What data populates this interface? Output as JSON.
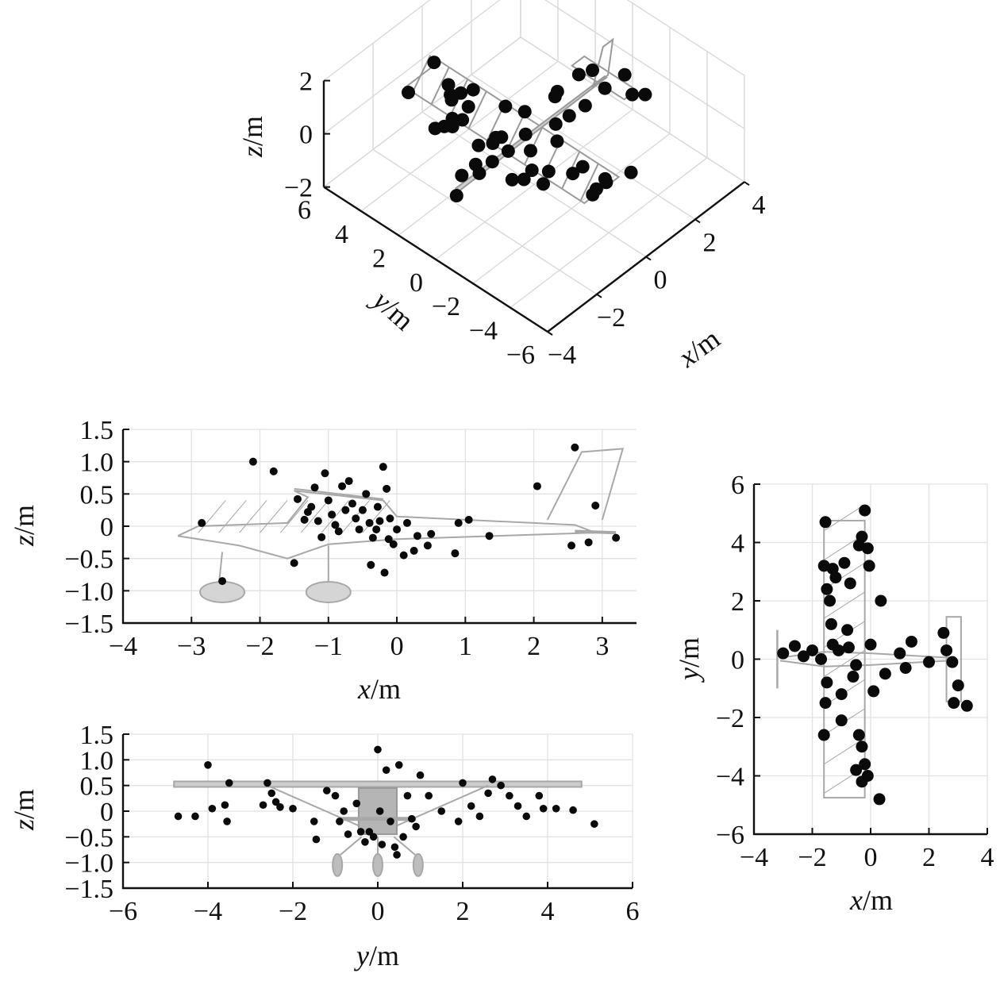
{
  "figure": {
    "panels": [
      {
        "id": "iso",
        "xlabel": "x",
        "ylabel": "y",
        "zlabel": "z",
        "unit": "/m"
      },
      {
        "id": "xz",
        "xlabel": "x",
        "ylabel": "z",
        "unit": "/m"
      },
      {
        "id": "yz",
        "xlabel": "y",
        "ylabel": "z",
        "unit": "/m"
      },
      {
        "id": "xy",
        "xlabel": "x",
        "ylabel": "y",
        "unit": "/m"
      }
    ]
  },
  "chart_data": [
    {
      "type": "scatter",
      "view": "3d",
      "xlabel": "x/m",
      "ylabel": "y/m",
      "zlabel": "z/m",
      "xlim": [
        -4,
        4
      ],
      "ylim": [
        -6,
        6
      ],
      "zlim": [
        -2,
        2
      ],
      "xticks": [
        "−4",
        "−2",
        "0",
        "2",
        "4"
      ],
      "yticks": [
        "−6",
        "−4",
        "−2",
        "0",
        "2",
        "4",
        "6"
      ],
      "zticks": [
        "−2",
        "0",
        "2"
      ],
      "grid": true
    },
    {
      "type": "scatter",
      "view": "side (x–z)",
      "xlabel": "x/m",
      "ylabel": "z/m",
      "xlim": [
        -4,
        3.5
      ],
      "ylim": [
        -1.5,
        1.5
      ],
      "xticks": [
        "−4",
        "−3",
        "−2",
        "−1",
        "0",
        "1",
        "2",
        "3"
      ],
      "yticks": [
        "1.5",
        "1.0",
        "0.5",
        "0",
        "−0.5",
        "−1.0",
        "−1.5"
      ],
      "grid": true,
      "points": [
        [
          -2.85,
          0.05
        ],
        [
          -2.55,
          -0.85
        ],
        [
          -2.1,
          1.0
        ],
        [
          -1.8,
          0.85
        ],
        [
          -1.5,
          -0.57
        ],
        [
          -1.45,
          0.42
        ],
        [
          -1.35,
          0.1
        ],
        [
          -1.3,
          0.22
        ],
        [
          -1.25,
          0.3
        ],
        [
          -1.2,
          0.6
        ],
        [
          -1.15,
          0.08
        ],
        [
          -1.1,
          -0.17
        ],
        [
          -1.05,
          0.82
        ],
        [
          -1.0,
          0.4
        ],
        [
          -0.95,
          0.18
        ],
        [
          -0.9,
          0.02
        ],
        [
          -0.85,
          -0.08
        ],
        [
          -0.8,
          0.62
        ],
        [
          -0.75,
          0.25
        ],
        [
          -0.7,
          0.7
        ],
        [
          -0.65,
          0.35
        ],
        [
          -0.6,
          0.12
        ],
        [
          -0.55,
          -0.05
        ],
        [
          -0.5,
          0.25
        ],
        [
          -0.45,
          0.5
        ],
        [
          -0.4,
          0.05
        ],
        [
          -0.38,
          -0.6
        ],
        [
          -0.35,
          -0.18
        ],
        [
          -0.3,
          -0.05
        ],
        [
          -0.28,
          0.3
        ],
        [
          -0.25,
          0.08
        ],
        [
          -0.2,
          0.92
        ],
        [
          -0.18,
          -0.72
        ],
        [
          -0.15,
          0.58
        ],
        [
          -0.12,
          -0.2
        ],
        [
          -0.1,
          0.12
        ],
        [
          -0.05,
          -0.28
        ],
        [
          0.0,
          -0.05
        ],
        [
          0.1,
          -0.45
        ],
        [
          0.15,
          0.05
        ],
        [
          0.25,
          -0.38
        ],
        [
          0.3,
          -0.15
        ],
        [
          0.45,
          -0.3
        ],
        [
          0.5,
          -0.12
        ],
        [
          0.85,
          -0.42
        ],
        [
          0.9,
          0.05
        ],
        [
          1.05,
          0.1
        ],
        [
          1.35,
          -0.15
        ],
        [
          2.05,
          0.62
        ],
        [
          2.55,
          -0.3
        ],
        [
          2.6,
          1.22
        ],
        [
          2.8,
          -0.25
        ],
        [
          2.9,
          0.32
        ],
        [
          3.2,
          -0.18
        ]
      ]
    },
    {
      "type": "scatter",
      "view": "front (y–z)",
      "xlabel": "y/m",
      "ylabel": "z/m",
      "xlim": [
        -6,
        6
      ],
      "ylim": [
        -1.5,
        1.5
      ],
      "xticks": [
        "−6",
        "−4",
        "−2",
        "0",
        "2",
        "4",
        "6"
      ],
      "yticks": [
        "1.5",
        "1.0",
        "0.5",
        "0",
        "−0.5",
        "−1.0",
        "−1.5"
      ],
      "grid": true,
      "points": [
        [
          -4.7,
          -0.1
        ],
        [
          -4.3,
          -0.1
        ],
        [
          -4.0,
          0.9
        ],
        [
          -3.9,
          0.05
        ],
        [
          -3.6,
          0.12
        ],
        [
          -3.55,
          -0.2
        ],
        [
          -3.5,
          0.55
        ],
        [
          -2.7,
          0.12
        ],
        [
          -2.6,
          0.55
        ],
        [
          -2.5,
          0.35
        ],
        [
          -2.4,
          0.18
        ],
        [
          -2.3,
          0.08
        ],
        [
          -2.0,
          0.05
        ],
        [
          -1.5,
          -0.2
        ],
        [
          -1.45,
          -0.55
        ],
        [
          -1.2,
          0.4
        ],
        [
          -1.0,
          0.3
        ],
        [
          -0.9,
          -0.2
        ],
        [
          -0.8,
          0.0
        ],
        [
          -0.7,
          -0.45
        ],
        [
          -0.5,
          0.15
        ],
        [
          -0.4,
          -0.4
        ],
        [
          -0.3,
          -0.6
        ],
        [
          -0.2,
          -0.4
        ],
        [
          -0.1,
          -0.5
        ],
        [
          0.0,
          1.2
        ],
        [
          0.05,
          0.0
        ],
        [
          0.1,
          -0.65
        ],
        [
          0.2,
          0.8
        ],
        [
          0.3,
          -0.2
        ],
        [
          0.4,
          -0.7
        ],
        [
          0.45,
          -0.85
        ],
        [
          0.5,
          0.9
        ],
        [
          0.6,
          -0.5
        ],
        [
          0.7,
          0.3
        ],
        [
          0.8,
          -0.15
        ],
        [
          0.9,
          -0.3
        ],
        [
          1.0,
          0.7
        ],
        [
          1.2,
          0.3
        ],
        [
          1.5,
          0.0
        ],
        [
          1.9,
          -0.2
        ],
        [
          2.0,
          0.55
        ],
        [
          2.2,
          0.1
        ],
        [
          2.4,
          -0.1
        ],
        [
          2.6,
          0.35
        ],
        [
          2.7,
          0.62
        ],
        [
          2.9,
          0.5
        ],
        [
          3.1,
          0.3
        ],
        [
          3.3,
          0.1
        ],
        [
          3.5,
          -0.1
        ],
        [
          3.8,
          0.3
        ],
        [
          3.9,
          0.05
        ],
        [
          4.2,
          0.05
        ],
        [
          4.6,
          0.02
        ],
        [
          5.1,
          -0.25
        ]
      ]
    },
    {
      "type": "scatter",
      "view": "top (x–y)",
      "xlabel": "x/m",
      "ylabel": "y/m",
      "xlim": [
        -4,
        4
      ],
      "ylim": [
        -6,
        6
      ],
      "xticks": [
        "−4",
        "−2",
        "0",
        "2",
        "4"
      ],
      "yticks": [
        "6",
        "4",
        "2",
        "0",
        "−2",
        "−4",
        "−6"
      ],
      "grid": true,
      "points": [
        [
          -3.0,
          0.2
        ],
        [
          -2.6,
          0.45
        ],
        [
          -2.3,
          0.1
        ],
        [
          -2.0,
          0.3
        ],
        [
          -1.7,
          0.0
        ],
        [
          -1.55,
          4.7
        ],
        [
          -1.6,
          3.2
        ],
        [
          -1.5,
          2.4
        ],
        [
          -1.4,
          2.0
        ],
        [
          -1.35,
          1.2
        ],
        [
          -1.3,
          0.5
        ],
        [
          -1.5,
          -0.8
        ],
        [
          -1.55,
          -1.5
        ],
        [
          -1.6,
          -2.6
        ],
        [
          -1.3,
          3.1
        ],
        [
          -1.2,
          2.8
        ],
        [
          -1.1,
          0.3
        ],
        [
          -1.0,
          -1.2
        ],
        [
          -1.0,
          -2.1
        ],
        [
          -0.9,
          3.3
        ],
        [
          -0.8,
          1.0
        ],
        [
          -0.7,
          2.6
        ],
        [
          -0.75,
          0.4
        ],
        [
          -0.6,
          -0.6
        ],
        [
          -0.5,
          -0.2
        ],
        [
          -0.4,
          3.9
        ],
        [
          -0.3,
          4.2
        ],
        [
          -0.2,
          5.1
        ],
        [
          -0.1,
          3.8
        ],
        [
          -0.05,
          3.2
        ],
        [
          0.0,
          0.5
        ],
        [
          -0.4,
          -2.6
        ],
        [
          -0.3,
          -3.0
        ],
        [
          -0.2,
          -3.6
        ],
        [
          -0.1,
          -4.0
        ],
        [
          -0.3,
          -4.2
        ],
        [
          -0.5,
          -3.8
        ],
        [
          0.1,
          -1.1
        ],
        [
          0.3,
          -4.8
        ],
        [
          0.35,
          2.0
        ],
        [
          0.5,
          -0.5
        ],
        [
          1.0,
          0.2
        ],
        [
          1.2,
          -0.3
        ],
        [
          1.4,
          0.6
        ],
        [
          2.0,
          -0.1
        ],
        [
          2.5,
          0.9
        ],
        [
          2.6,
          0.3
        ],
        [
          2.8,
          -0.1
        ],
        [
          2.85,
          -1.5
        ],
        [
          3.0,
          -0.9
        ],
        [
          3.3,
          -1.6
        ]
      ]
    }
  ]
}
